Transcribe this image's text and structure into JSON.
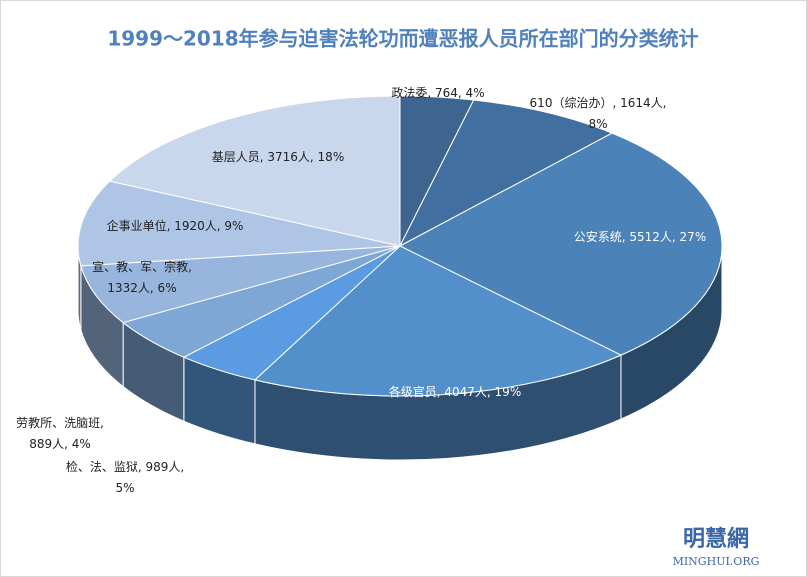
{
  "chart_data": {
    "type": "pie3d",
    "title": "1999～2018年参与迫害法轮功而遭恶报人员所在部门的分类统计",
    "values": [
      764,
      1614,
      5512,
      4047,
      889,
      989,
      1332,
      1920,
      3716
    ],
    "value_labels": [
      "政法委, 764, 4%",
      "610（综治办）, 1614人,\n8%",
      "公安系统, 5512人, 27%",
      "各级官员, 4047人, 19%",
      "劳教所、洗脑班,\n889人, 4%",
      "检、法、监狱, 989人,\n5%",
      "宣、教、军、宗教,\n1332人, 6%",
      "企事业单位, 1920人, 9%",
      "基层人员, 3716人, 18%"
    ],
    "colors": [
      "#3e6590",
      "#416f9f",
      "#4b82b8",
      "#5390cb",
      "#5b9be1",
      "#7ea7d6",
      "#97b5dd",
      "#afc5e6",
      "#c9d7ed"
    ],
    "watermark": {
      "name": "明慧網",
      "site": "MINGHUI.ORG"
    }
  }
}
